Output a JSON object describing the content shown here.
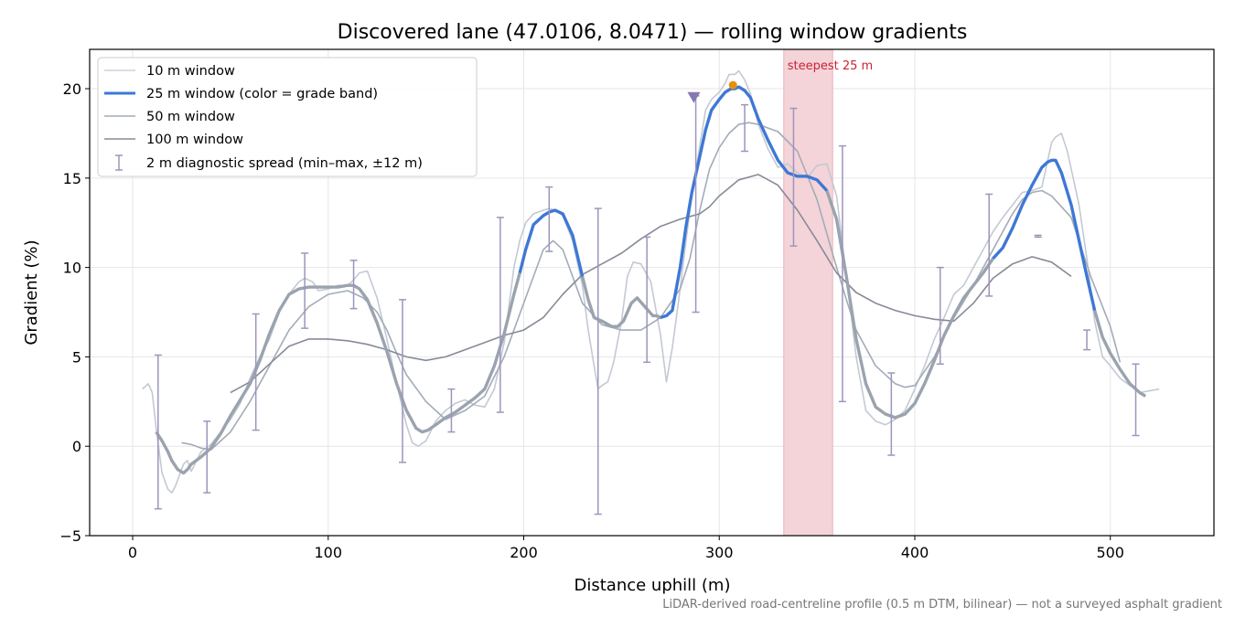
{
  "chart_data": {
    "type": "line",
    "title": "Discovered lane (47.0106, 8.0471) — rolling window gradients",
    "xlabel": "Distance uphill (m)",
    "ylabel": "Gradient (%)",
    "xlim": [
      -22,
      553
    ],
    "ylim": [
      -5,
      22.2
    ],
    "xticks": [
      0,
      100,
      200,
      300,
      400,
      500
    ],
    "yticks": [
      -5,
      0,
      5,
      10,
      15,
      20
    ],
    "grid": true,
    "legend_position": "top-left",
    "footnote": "LiDAR-derived road-centreline profile (0.5 m DTM, bilinear) — not a surveyed asphalt gradient",
    "colors": {
      "w10": "#c3c9d4",
      "w25_blue": "#3c78d8",
      "w25_grey": "#9aa3ae",
      "w50": "#a3abb8",
      "w100": "#858b97",
      "spread": "#9c95bd",
      "steep_band": "#f4d4d8",
      "steep_text": "#cc2233",
      "peak_marker": "#e8900c",
      "triangle_marker": "#8878b0"
    },
    "series": [
      {
        "name": "10 m window",
        "x": [
          5,
          8,
          10,
          12,
          15,
          18,
          20,
          22,
          24,
          26,
          28,
          30,
          35,
          40,
          45,
          50,
          55,
          60,
          65,
          70,
          75,
          80,
          85,
          88,
          92,
          95,
          100,
          105,
          110,
          113,
          116,
          120,
          125,
          130,
          135,
          140,
          143,
          146,
          150,
          155,
          160,
          165,
          170,
          175,
          180,
          185,
          190,
          195,
          198,
          201,
          205,
          210,
          213,
          216,
          220,
          225,
          230,
          233,
          236,
          238,
          240,
          243,
          246,
          250,
          253,
          256,
          260,
          265,
          270,
          273,
          276,
          280,
          283,
          286,
          290,
          293,
          296,
          300,
          303,
          305,
          308,
          310,
          313,
          316,
          320,
          325,
          330,
          335,
          340,
          345,
          350,
          355,
          360,
          365,
          370,
          375,
          380,
          385,
          390,
          395,
          400,
          405,
          410,
          415,
          420,
          425,
          430,
          435,
          440,
          445,
          450,
          455,
          460,
          465,
          468,
          470,
          472,
          475,
          478,
          480,
          484,
          488,
          492,
          496,
          500,
          505,
          510,
          515,
          520,
          525
        ],
        "y": [
          3.2,
          3.5,
          3.0,
          1.0,
          -1.5,
          -2.4,
          -2.6,
          -2.2,
          -1.6,
          -1.0,
          -0.8,
          -1.4,
          -0.3,
          0.1,
          0.8,
          1.5,
          2.4,
          3.8,
          5.0,
          6.0,
          7.5,
          8.5,
          9.2,
          9.4,
          9.2,
          8.7,
          8.8,
          9.0,
          9.0,
          9.3,
          9.7,
          9.8,
          8.3,
          6.0,
          3.5,
          1.2,
          0.2,
          0.0,
          0.3,
          1.4,
          2.0,
          2.4,
          2.6,
          2.3,
          2.2,
          3.2,
          5.8,
          10.0,
          11.5,
          12.5,
          13.0,
          13.2,
          13.3,
          13.2,
          12.9,
          11.5,
          9.0,
          6.5,
          4.5,
          3.2,
          3.4,
          3.6,
          4.7,
          7.0,
          9.5,
          10.3,
          10.2,
          9.2,
          6.2,
          3.6,
          5.5,
          8.8,
          11.5,
          14.0,
          16.8,
          18.8,
          19.4,
          19.8,
          20.3,
          20.8,
          20.8,
          21.0,
          20.5,
          19.7,
          18.0,
          16.6,
          15.6,
          15.8,
          15.3,
          15.0,
          15.7,
          15.8,
          14.0,
          9.5,
          5.0,
          2.0,
          1.4,
          1.2,
          1.5,
          2.0,
          3.2,
          4.5,
          6.0,
          7.2,
          8.5,
          9.0,
          10.0,
          11.0,
          12.0,
          12.8,
          13.5,
          14.2,
          14.3,
          14.5,
          16.0,
          17.0,
          17.3,
          17.5,
          16.5,
          15.5,
          13.5,
          10.5,
          7.0,
          5.0,
          4.5,
          3.8,
          3.4,
          3.0,
          3.1,
          3.2
        ]
      },
      {
        "name": "25 m window (color = grade band)",
        "x": [
          12,
          15,
          18,
          20,
          23,
          26,
          28,
          30,
          35,
          40,
          45,
          50,
          55,
          60,
          65,
          70,
          75,
          80,
          85,
          90,
          95,
          100,
          105,
          110,
          113,
          116,
          120,
          125,
          130,
          135,
          140,
          145,
          148,
          151,
          155,
          160,
          165,
          170,
          175,
          180,
          185,
          190,
          195,
          198,
          201,
          205,
          210,
          213,
          216,
          220,
          225,
          230,
          233,
          236,
          240,
          245,
          248,
          251,
          255,
          258,
          262,
          266,
          268,
          270,
          273,
          276,
          280,
          283,
          286,
          290,
          293,
          296,
          300,
          303,
          306,
          308,
          310,
          313,
          316,
          320,
          325,
          330,
          335,
          340,
          345,
          350,
          355,
          360,
          365,
          370,
          375,
          380,
          385,
          390,
          395,
          400,
          405,
          410,
          415,
          420,
          425,
          430,
          435,
          440,
          445,
          450,
          455,
          460,
          465,
          468,
          470,
          472,
          475,
          480,
          485,
          488,
          492,
          496,
          500,
          505,
          510,
          515,
          518
        ],
        "y": [
          0.8,
          0.3,
          -0.3,
          -0.8,
          -1.3,
          -1.5,
          -1.3,
          -1.0,
          -0.6,
          -0.1,
          0.7,
          1.7,
          2.6,
          3.5,
          4.8,
          6.3,
          7.6,
          8.5,
          8.8,
          8.9,
          8.9,
          8.9,
          8.9,
          9.0,
          9.0,
          8.8,
          8.2,
          6.9,
          5.3,
          3.5,
          2.0,
          1.0,
          0.8,
          0.9,
          1.2,
          1.6,
          1.9,
          2.3,
          2.7,
          3.2,
          4.5,
          6.3,
          8.5,
          9.7,
          11.0,
          12.4,
          12.9,
          13.1,
          13.2,
          13.0,
          11.8,
          9.5,
          8.2,
          7.2,
          7.0,
          6.7,
          6.7,
          7.0,
          8.0,
          8.3,
          7.8,
          7.3,
          7.3,
          7.2,
          7.3,
          7.6,
          10.0,
          12.3,
          14.2,
          16.2,
          17.7,
          18.8,
          19.4,
          19.8,
          20.0,
          20.0,
          20.1,
          19.9,
          19.5,
          18.3,
          17.1,
          16.0,
          15.3,
          15.1,
          15.1,
          14.9,
          14.3,
          12.7,
          9.5,
          6.0,
          3.5,
          2.2,
          1.8,
          1.6,
          1.8,
          2.4,
          3.5,
          4.8,
          6.2,
          7.3,
          8.3,
          9.0,
          9.7,
          10.5,
          11.1,
          12.2,
          13.5,
          14.6,
          15.6,
          15.9,
          16.0,
          16.0,
          15.3,
          13.5,
          11.0,
          9.5,
          7.6,
          6.1,
          5.2,
          4.3,
          3.5,
          3.0,
          2.8
        ]
      },
      {
        "name": "50 m window",
        "x": [
          25,
          30,
          35,
          40,
          50,
          60,
          70,
          80,
          90,
          100,
          110,
          118,
          125,
          130,
          135,
          140,
          150,
          160,
          170,
          180,
          190,
          200,
          205,
          210,
          215,
          220,
          225,
          230,
          240,
          250,
          260,
          270,
          280,
          285,
          290,
          295,
          300,
          305,
          310,
          315,
          320,
          325,
          330,
          340,
          350,
          360,
          365,
          370,
          380,
          390,
          395,
          400,
          410,
          420,
          430,
          440,
          450,
          455,
          460,
          465,
          470,
          480,
          490,
          500,
          505
        ],
        "y": [
          0.2,
          0.1,
          -0.1,
          -0.2,
          0.8,
          2.5,
          4.5,
          6.5,
          7.8,
          8.5,
          8.7,
          8.3,
          7.5,
          6.5,
          5.2,
          4.0,
          2.5,
          1.5,
          2.0,
          2.8,
          5.0,
          8.0,
          9.5,
          11.0,
          11.5,
          11.0,
          9.5,
          8.0,
          6.8,
          6.5,
          6.5,
          7.2,
          8.8,
          10.5,
          13.2,
          15.5,
          16.7,
          17.5,
          18.0,
          18.1,
          18.0,
          17.8,
          17.6,
          16.5,
          13.8,
          10.0,
          8.2,
          6.5,
          4.5,
          3.5,
          3.3,
          3.4,
          5.0,
          7.2,
          9.0,
          11.0,
          13.0,
          13.8,
          14.2,
          14.3,
          14.0,
          12.8,
          9.5,
          6.7,
          4.7
        ]
      },
      {
        "name": "100 m window",
        "x": [
          50,
          60,
          70,
          80,
          90,
          100,
          110,
          120,
          130,
          140,
          150,
          160,
          170,
          180,
          190,
          200,
          210,
          220,
          230,
          240,
          250,
          260,
          270,
          280,
          290,
          295,
          300,
          310,
          320,
          330,
          340,
          350,
          360,
          370,
          380,
          390,
          400,
          410,
          420,
          430,
          440,
          450,
          460,
          470,
          480
        ],
        "y": [
          3.0,
          3.6,
          4.6,
          5.6,
          6.0,
          6.0,
          5.9,
          5.7,
          5.4,
          5.0,
          4.8,
          5.0,
          5.4,
          5.8,
          6.2,
          6.5,
          7.2,
          8.5,
          9.6,
          10.2,
          10.8,
          11.6,
          12.3,
          12.7,
          13.0,
          13.4,
          14.0,
          14.9,
          15.2,
          14.6,
          13.2,
          11.5,
          9.7,
          8.6,
          8.0,
          7.6,
          7.3,
          7.1,
          7.0,
          8.0,
          9.4,
          10.2,
          10.6,
          10.3,
          9.5
        ]
      }
    ],
    "spread_label": "2 m diagnostic spread (min–max, ±12 m)",
    "diagnostic_spread": [
      {
        "x": 13,
        "min": -3.5,
        "max": 5.1
      },
      {
        "x": 38,
        "min": -2.6,
        "max": 1.4
      },
      {
        "x": 63,
        "min": 0.9,
        "max": 7.4
      },
      {
        "x": 88,
        "min": 6.6,
        "max": 10.8
      },
      {
        "x": 113,
        "min": 7.7,
        "max": 10.4
      },
      {
        "x": 138,
        "min": -0.9,
        "max": 8.2
      },
      {
        "x": 163,
        "min": 0.8,
        "max": 3.2
      },
      {
        "x": 188,
        "min": 1.9,
        "max": 12.8
      },
      {
        "x": 213,
        "min": 10.9,
        "max": 14.5
      },
      {
        "x": 238,
        "min": -3.8,
        "max": 13.3
      },
      {
        "x": 263,
        "min": 4.7,
        "max": 11.7
      },
      {
        "x": 288,
        "min": 7.5,
        "max": 19.6
      },
      {
        "x": 313,
        "min": 16.5,
        "max": 19.1
      },
      {
        "x": 338,
        "min": 11.2,
        "max": 18.9
      },
      {
        "x": 363,
        "min": 2.5,
        "max": 16.8
      },
      {
        "x": 388,
        "min": -0.5,
        "max": 4.1
      },
      {
        "x": 413,
        "min": 4.6,
        "max": 10.0
      },
      {
        "x": 438,
        "min": 8.4,
        "max": 14.1
      },
      {
        "x": 463,
        "min": 11.7,
        "max": 11.8
      },
      {
        "x": 488,
        "min": 5.4,
        "max": 6.5
      },
      {
        "x": 513,
        "min": 0.6,
        "max": 4.6
      }
    ],
    "steepest_band": {
      "label": "steepest 25 m",
      "x0": 333,
      "x1": 358
    },
    "peak_marker": {
      "x": 307,
      "y": 20.2
    },
    "triangle_marker": {
      "x": 287,
      "y": 19.5
    },
    "blue_segments": [
      [
        198,
        230
      ],
      [
        270,
        305
      ],
      [
        305,
        355
      ],
      [
        440,
        492
      ]
    ]
  }
}
